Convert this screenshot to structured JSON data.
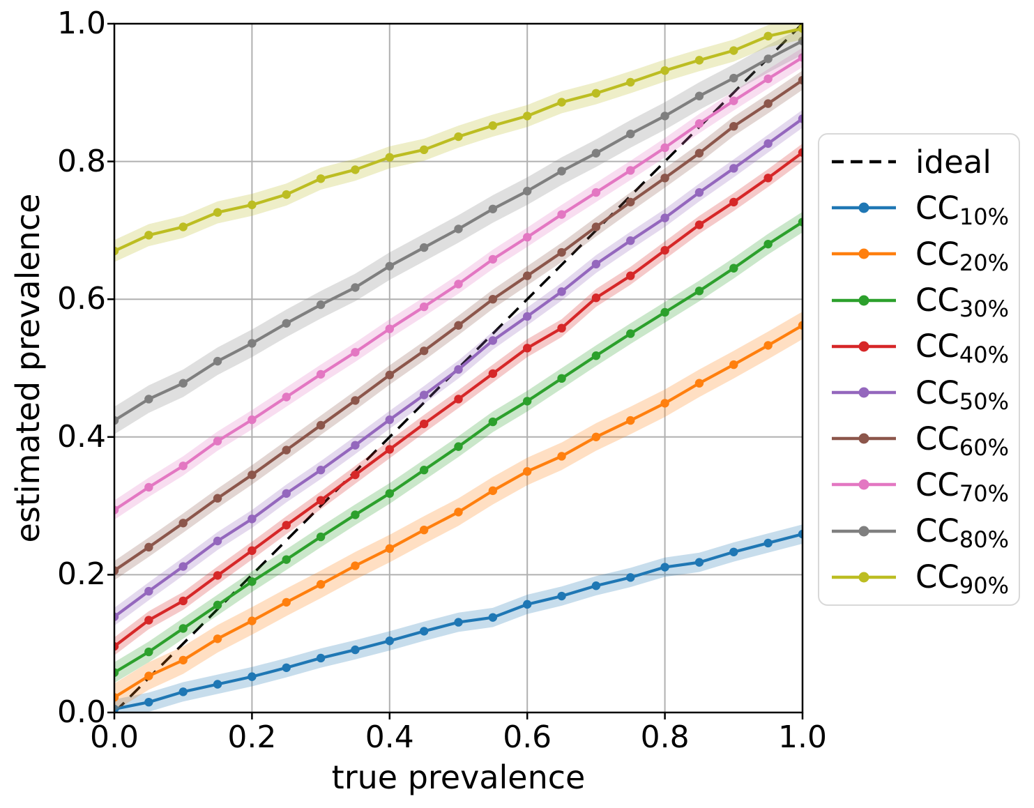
{
  "chart_data": {
    "type": "line",
    "title": "",
    "xlabel": "true prevalence",
    "ylabel": "estimated prevalence",
    "xlim": [
      0.0,
      1.0
    ],
    "ylim": [
      0.0,
      1.0
    ],
    "grid": true,
    "grid_color": "#b0b0b0",
    "legend_position": "right outside",
    "ticks": {
      "values": [
        0.0,
        0.2,
        0.4,
        0.6,
        0.8,
        1.0
      ],
      "x_labels": [
        "0.0",
        "0.2",
        "0.4",
        "0.6",
        "0.8",
        "1.0"
      ],
      "y_labels": [
        "0.0",
        "0.2",
        "0.4",
        "0.6",
        "0.8",
        "1.0"
      ]
    },
    "x": [
      0.0,
      0.05,
      0.1,
      0.15,
      0.2,
      0.25,
      0.3,
      0.35,
      0.4,
      0.45,
      0.5,
      0.55,
      0.6,
      0.65,
      0.7,
      0.75,
      0.8,
      0.85,
      0.9,
      0.95,
      1.0
    ],
    "ideal": {
      "label": "ideal",
      "color": "#000000",
      "linestyle": "dashed",
      "x": [
        0.0,
        1.0
      ],
      "y": [
        0.0,
        1.0
      ]
    },
    "series": [
      {
        "label": "CC",
        "sub": "10%",
        "color": "#1f77b4",
        "band_halfwidth": 0.014,
        "values": [
          0.005,
          0.015,
          0.03,
          0.041,
          0.052,
          0.065,
          0.079,
          0.091,
          0.104,
          0.118,
          0.131,
          0.138,
          0.157,
          0.169,
          0.184,
          0.196,
          0.211,
          0.218,
          0.233,
          0.246,
          0.259
        ]
      },
      {
        "label": "CC",
        "sub": "20%",
        "color": "#ff7f0e",
        "band_halfwidth": 0.02,
        "values": [
          0.022,
          0.053,
          0.076,
          0.107,
          0.133,
          0.16,
          0.186,
          0.213,
          0.238,
          0.265,
          0.291,
          0.322,
          0.35,
          0.372,
          0.4,
          0.424,
          0.449,
          0.478,
          0.505,
          0.533,
          0.562
        ]
      },
      {
        "label": "CC",
        "sub": "30%",
        "color": "#2ca02c",
        "band_halfwidth": 0.015,
        "values": [
          0.058,
          0.088,
          0.122,
          0.156,
          0.19,
          0.222,
          0.255,
          0.287,
          0.318,
          0.352,
          0.386,
          0.422,
          0.452,
          0.485,
          0.518,
          0.55,
          0.581,
          0.612,
          0.645,
          0.68,
          0.712
        ]
      },
      {
        "label": "CC",
        "sub": "40%",
        "color": "#d62728",
        "band_halfwidth": 0.013,
        "values": [
          0.096,
          0.134,
          0.162,
          0.199,
          0.235,
          0.272,
          0.308,
          0.345,
          0.382,
          0.419,
          0.455,
          0.492,
          0.529,
          0.558,
          0.602,
          0.634,
          0.671,
          0.708,
          0.741,
          0.776,
          0.813
        ]
      },
      {
        "label": "CC",
        "sub": "50%",
        "color": "#9467bd",
        "band_halfwidth": 0.013,
        "values": [
          0.139,
          0.176,
          0.212,
          0.249,
          0.281,
          0.318,
          0.352,
          0.388,
          0.425,
          0.461,
          0.498,
          0.54,
          0.575,
          0.611,
          0.651,
          0.685,
          0.718,
          0.755,
          0.79,
          0.826,
          0.862
        ]
      },
      {
        "label": "CC",
        "sub": "60%",
        "color": "#8c564b",
        "band_halfwidth": 0.014,
        "values": [
          0.206,
          0.24,
          0.275,
          0.311,
          0.345,
          0.381,
          0.417,
          0.453,
          0.49,
          0.525,
          0.562,
          0.6,
          0.634,
          0.668,
          0.705,
          0.741,
          0.776,
          0.812,
          0.851,
          0.884,
          0.918
        ]
      },
      {
        "label": "CC",
        "sub": "70%",
        "color": "#e377c2",
        "band_halfwidth": 0.014,
        "values": [
          0.294,
          0.327,
          0.358,
          0.394,
          0.425,
          0.458,
          0.491,
          0.523,
          0.557,
          0.589,
          0.622,
          0.658,
          0.69,
          0.723,
          0.755,
          0.787,
          0.82,
          0.855,
          0.888,
          0.92,
          0.951
        ]
      },
      {
        "label": "CC",
        "sub": "80%",
        "color": "#7f7f7f",
        "band_halfwidth": 0.02,
        "values": [
          0.424,
          0.455,
          0.478,
          0.51,
          0.536,
          0.565,
          0.592,
          0.617,
          0.648,
          0.675,
          0.702,
          0.731,
          0.757,
          0.786,
          0.812,
          0.84,
          0.866,
          0.895,
          0.921,
          0.949,
          0.975
        ]
      },
      {
        "label": "CC",
        "sub": "90%",
        "color": "#bcbd22",
        "band_halfwidth": 0.016,
        "values": [
          0.67,
          0.693,
          0.705,
          0.726,
          0.737,
          0.752,
          0.775,
          0.788,
          0.806,
          0.817,
          0.836,
          0.852,
          0.866,
          0.886,
          0.899,
          0.915,
          0.932,
          0.947,
          0.961,
          0.982,
          0.993
        ]
      }
    ]
  }
}
